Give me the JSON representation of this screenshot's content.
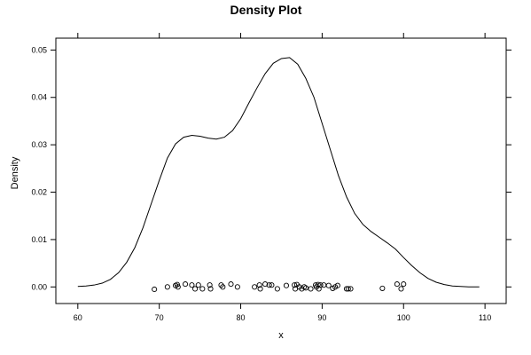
{
  "chart_data": {
    "type": "line",
    "title": "Density Plot",
    "xlabel": "x",
    "ylabel": "Density",
    "xlim": [
      57.3,
      112.6
    ],
    "ylim": [
      -0.0035,
      0.0525
    ],
    "x_ticks": [
      60,
      70,
      80,
      90,
      100,
      110
    ],
    "x_tick_labels": [
      "60",
      "70",
      "80",
      "90",
      "100",
      "110"
    ],
    "y_ticks": [
      0.0,
      0.01,
      0.02,
      0.03,
      0.04,
      0.05
    ],
    "y_tick_labels": [
      "0.00",
      "0.01",
      "0.02",
      "0.03",
      "0.04",
      "0.05"
    ],
    "grid": false,
    "legend": "none",
    "series": [
      {
        "kind": "density-line",
        "x": [
          60,
          61,
          62,
          63,
          64,
          65,
          66,
          67,
          68,
          69,
          70,
          71,
          72,
          73,
          74,
          75,
          76,
          77,
          78,
          79,
          80,
          81,
          82,
          83,
          84,
          85,
          86,
          87,
          88,
          89,
          90,
          91,
          92,
          93,
          94,
          95,
          96,
          97,
          98,
          99,
          100,
          101,
          102,
          103,
          104,
          105,
          106,
          107,
          108,
          109.3
        ],
        "y": [
          0.0001,
          0.0002,
          0.0004,
          0.0008,
          0.0016,
          0.003,
          0.0052,
          0.0083,
          0.0125,
          0.0175,
          0.0225,
          0.0272,
          0.0302,
          0.0316,
          0.032,
          0.0318,
          0.0314,
          0.0312,
          0.0316,
          0.033,
          0.0355,
          0.0388,
          0.042,
          0.045,
          0.0472,
          0.0482,
          0.0484,
          0.047,
          0.044,
          0.04,
          0.0345,
          0.029,
          0.0235,
          0.019,
          0.0155,
          0.0132,
          0.0117,
          0.0105,
          0.0093,
          0.008,
          0.0062,
          0.0045,
          0.003,
          0.0018,
          0.001,
          0.0005,
          0.0002,
          0.0001,
          0.0,
          0.0
        ]
      },
      {
        "kind": "rug-points",
        "x": [
          69.4,
          71.0,
          72.0,
          72.2,
          72.3,
          73.2,
          74.0,
          74.4,
          74.8,
          75.3,
          76.2,
          76.3,
          77.6,
          77.8,
          78.8,
          79.6,
          81.7,
          82.3,
          82.4,
          83.0,
          83.5,
          83.8,
          84.5,
          85.6,
          86.6,
          86.7,
          86.9,
          87.2,
          87.5,
          87.8,
          88.0,
          88.6,
          89.2,
          89.3,
          89.5,
          89.6,
          89.8,
          90.2,
          90.8,
          91.3,
          91.6,
          91.9,
          93.0,
          93.2,
          93.5,
          97.4,
          99.2,
          99.7,
          100.0
        ],
        "y": [
          -0.0005,
          0.0,
          0.0003,
          0.0005,
          0.0,
          0.0006,
          0.0004,
          -0.0004,
          0.0004,
          -0.0004,
          0.0004,
          -0.0004,
          0.0004,
          0.0,
          0.0006,
          0.0,
          0.0,
          0.0004,
          -0.0004,
          0.0006,
          0.0004,
          0.0004,
          -0.0004,
          0.0003,
          0.0004,
          -0.0004,
          0.0005,
          0.0,
          -0.0004,
          0.0,
          -0.0002,
          -0.0004,
          0.0004,
          0.0,
          0.0005,
          -0.0004,
          0.0004,
          0.0004,
          0.0003,
          -0.0003,
          0.0,
          0.0003,
          -0.0004,
          -0.0004,
          -0.0004,
          -0.0003,
          0.0006,
          -0.0004,
          0.0006
        ]
      }
    ]
  }
}
